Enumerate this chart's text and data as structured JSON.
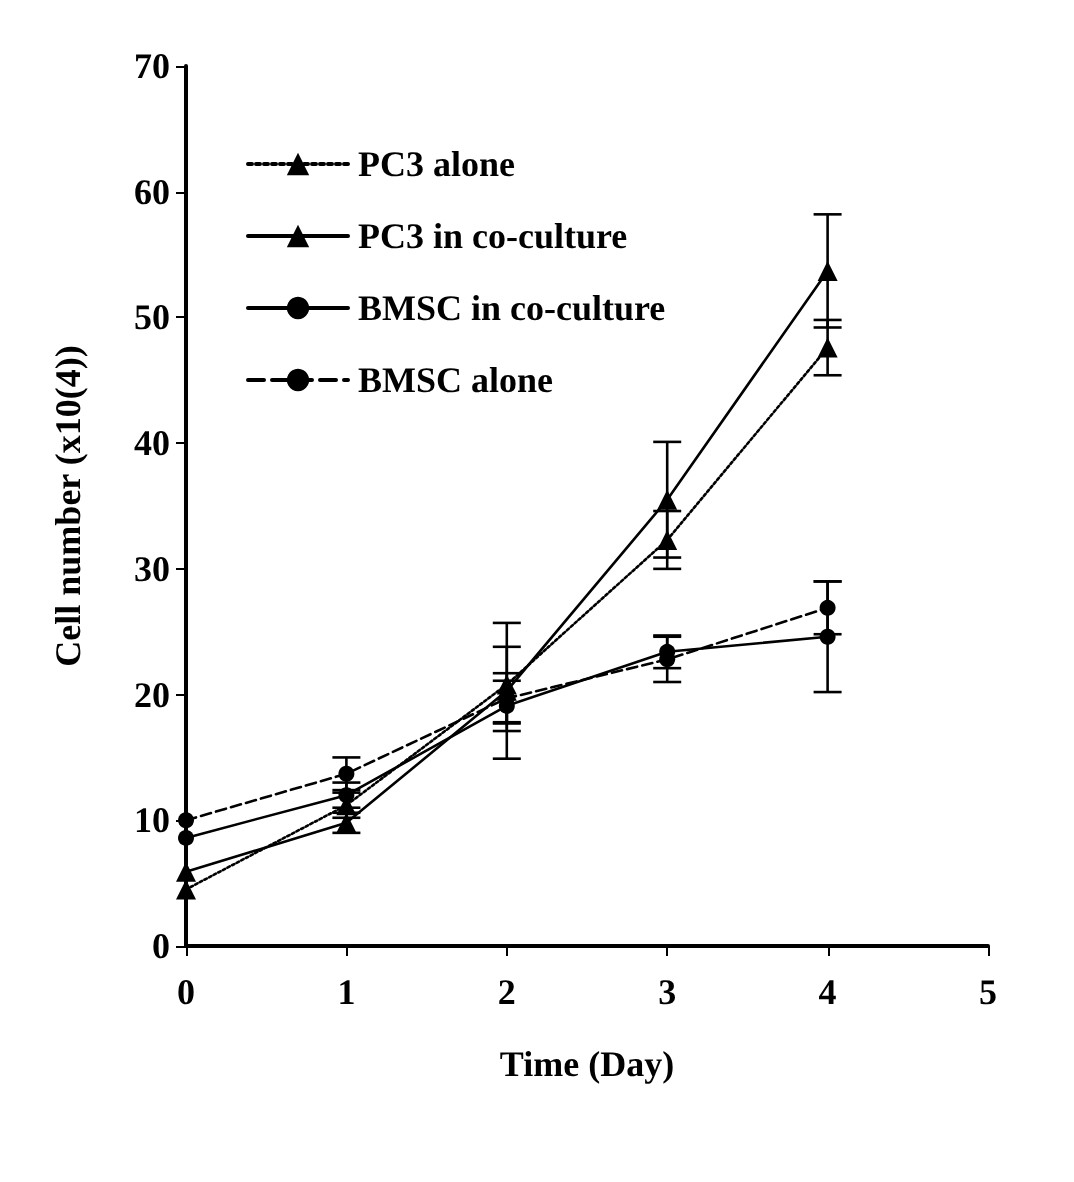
{
  "chart_data": {
    "type": "line",
    "xlabel": "Time (Day)",
    "ylabel": "Cell number (x10(4))",
    "x": [
      0,
      1,
      2,
      3,
      4
    ],
    "xlim": [
      0,
      5
    ],
    "xticks": [
      0,
      1,
      2,
      3,
      4,
      5
    ],
    "ylim": [
      0,
      70
    ],
    "yticks": [
      0,
      10,
      20,
      30,
      40,
      50,
      60,
      70
    ],
    "grid": false,
    "legend": "top left",
    "series": [
      {
        "name": "PC3 alone",
        "color": "#000000",
        "line_style": "dotted",
        "marker": "triangle",
        "values": [
          4.5,
          11.2,
          20.8,
          32.3,
          47.6
        ],
        "errors": [
          null,
          1,
          3,
          2.3,
          2.2
        ]
      },
      {
        "name": "PC3 in co-culture",
        "color": "#000000",
        "line_style": "solid",
        "marker": "triangle",
        "values": [
          5.9,
          9.8,
          20.3,
          35.5,
          53.7
        ],
        "errors": [
          null,
          0.8,
          5.4,
          4.6,
          4.5
        ]
      },
      {
        "name": "BMSC in co-culture",
        "color": "#000000",
        "line_style": "solid",
        "marker": "circle",
        "values": [
          8.6,
          12,
          19.1,
          23.4,
          24.6
        ],
        "errors": [
          null,
          1,
          2,
          1.3,
          4.4
        ]
      },
      {
        "name": "BMSC alone",
        "color": "#000000",
        "line_style": "dashed",
        "marker": "circle",
        "values": [
          10,
          13.7,
          19.7,
          22.8,
          26.9
        ],
        "errors": [
          null,
          1.3,
          2,
          1.8,
          2.1
        ]
      }
    ]
  }
}
